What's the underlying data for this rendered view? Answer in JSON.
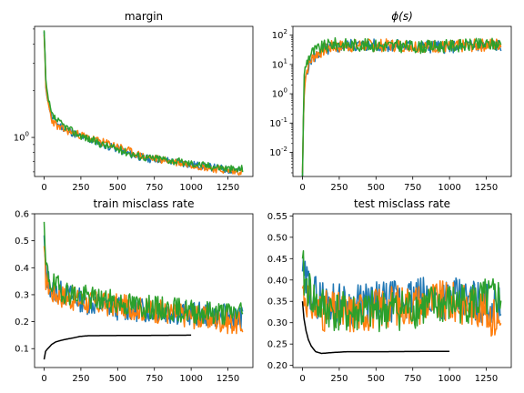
{
  "colors": {
    "C0": "#1f77b4",
    "C1": "#ff7f0e",
    "C2": "#2ca02c",
    "ref": "#000000"
  },
  "chart_data": [
    {
      "id": "margin",
      "type": "line",
      "title": "margin",
      "yscale": "log",
      "xlim": [
        -65,
        1420
      ],
      "ylim": [
        0.56,
        5.2
      ],
      "xticks": [
        0,
        250,
        500,
        750,
        1000,
        1250
      ],
      "xtick_labels": [
        "0",
        "250",
        "500",
        "750",
        "1000",
        "1250"
      ],
      "yticks": [
        1
      ],
      "ytick_labels": [
        "10^0"
      ],
      "series": [
        {
          "color_key": "C0",
          "noise": 0.025,
          "seed": 11,
          "points": [
            [
              0,
              4.8
            ],
            [
              10,
              2.2
            ],
            [
              25,
              1.75
            ],
            [
              50,
              1.35
            ],
            [
              100,
              1.2
            ],
            [
              200,
              1.06
            ],
            [
              300,
              0.97
            ],
            [
              400,
              0.9
            ],
            [
              500,
              0.84
            ],
            [
              600,
              0.77
            ],
            [
              700,
              0.73
            ],
            [
              800,
              0.72
            ],
            [
              900,
              0.69
            ],
            [
              1000,
              0.67
            ],
            [
              1100,
              0.65
            ],
            [
              1200,
              0.63
            ],
            [
              1300,
              0.61
            ],
            [
              1350,
              0.62
            ]
          ]
        },
        {
          "color_key": "C1",
          "noise": 0.025,
          "seed": 23,
          "points": [
            [
              0,
              4.6
            ],
            [
              10,
              2.1
            ],
            [
              25,
              1.7
            ],
            [
              50,
              1.3
            ],
            [
              100,
              1.15
            ],
            [
              200,
              1.07
            ],
            [
              300,
              1.0
            ],
            [
              400,
              0.93
            ],
            [
              500,
              0.88
            ],
            [
              600,
              0.8
            ],
            [
              700,
              0.74
            ],
            [
              800,
              0.72
            ],
            [
              900,
              0.69
            ],
            [
              1000,
              0.67
            ],
            [
              1100,
              0.64
            ],
            [
              1200,
              0.62
            ],
            [
              1300,
              0.6
            ],
            [
              1350,
              0.61
            ]
          ]
        },
        {
          "color_key": "C2",
          "noise": 0.025,
          "seed": 37,
          "points": [
            [
              0,
              4.9
            ],
            [
              10,
              2.3
            ],
            [
              25,
              1.8
            ],
            [
              50,
              1.4
            ],
            [
              100,
              1.25
            ],
            [
              200,
              1.08
            ],
            [
              300,
              0.98
            ],
            [
              400,
              0.9
            ],
            [
              500,
              0.84
            ],
            [
              600,
              0.78
            ],
            [
              700,
              0.74
            ],
            [
              800,
              0.73
            ],
            [
              900,
              0.7
            ],
            [
              1000,
              0.68
            ],
            [
              1100,
              0.66
            ],
            [
              1200,
              0.64
            ],
            [
              1300,
              0.62
            ],
            [
              1350,
              0.63
            ]
          ]
        }
      ]
    },
    {
      "id": "phi",
      "type": "line",
      "title": "ϕ(s)",
      "yscale": "log",
      "xlim": [
        -65,
        1420
      ],
      "ylim": [
        0.0015,
        200
      ],
      "xticks": [
        0,
        250,
        500,
        750,
        1000,
        1250
      ],
      "xtick_labels": [
        "0",
        "250",
        "500",
        "750",
        "1000",
        "1250"
      ],
      "yticks": [
        0.01,
        0.1,
        1,
        10,
        100
      ],
      "ytick_labels": [
        "10^-2",
        "10^-1",
        "10^0",
        "10^1",
        "10^2"
      ],
      "series": [
        {
          "color_key": "C0",
          "noise": 0.22,
          "seed": 5,
          "points": [
            [
              0,
              0.0015
            ],
            [
              8,
              0.1
            ],
            [
              20,
              3
            ],
            [
              60,
              15
            ],
            [
              150,
              30
            ],
            [
              300,
              45
            ],
            [
              600,
              45
            ],
            [
              800,
              40
            ],
            [
              1000,
              40
            ],
            [
              1200,
              45
            ],
            [
              1350,
              45
            ]
          ]
        },
        {
          "color_key": "C1",
          "noise": 0.22,
          "seed": 7,
          "points": [
            [
              0,
              0.002
            ],
            [
              8,
              0.15
            ],
            [
              25,
              5
            ],
            [
              80,
              20
            ],
            [
              200,
              40
            ],
            [
              400,
              45
            ],
            [
              700,
              45
            ],
            [
              1000,
              40
            ],
            [
              1200,
              45
            ],
            [
              1350,
              50
            ]
          ]
        },
        {
          "color_key": "C2",
          "noise": 0.22,
          "seed": 9,
          "points": [
            [
              0,
              0.0015
            ],
            [
              6,
              0.2
            ],
            [
              20,
              8
            ],
            [
              60,
              25
            ],
            [
              200,
              50
            ],
            [
              500,
              45
            ],
            [
              800,
              40
            ],
            [
              1100,
              45
            ],
            [
              1350,
              50
            ]
          ]
        }
      ]
    },
    {
      "id": "train",
      "type": "line",
      "title": "train misclass rate",
      "yscale": "linear",
      "xlim": [
        -65,
        1420
      ],
      "ylim": [
        0.03,
        0.6
      ],
      "xticks": [
        0,
        250,
        500,
        750,
        1000,
        1250
      ],
      "xtick_labels": [
        "0",
        "250",
        "500",
        "750",
        "1000",
        "1250"
      ],
      "yticks": [
        0.1,
        0.2,
        0.3,
        0.4,
        0.5,
        0.6
      ],
      "ytick_labels": [
        "0.1",
        "0.2",
        "0.3",
        "0.4",
        "0.5",
        "0.6"
      ],
      "series": [
        {
          "color_key": "C0",
          "noise": 0.045,
          "seed": 13,
          "points": [
            [
              0,
              0.52
            ],
            [
              10,
              0.38
            ],
            [
              50,
              0.32
            ],
            [
              150,
              0.3
            ],
            [
              300,
              0.27
            ],
            [
              500,
              0.25
            ],
            [
              750,
              0.24
            ],
            [
              1000,
              0.23
            ],
            [
              1250,
              0.22
            ],
            [
              1350,
              0.21
            ]
          ]
        },
        {
          "color_key": "C1",
          "noise": 0.045,
          "seed": 17,
          "points": [
            [
              0,
              0.48
            ],
            [
              10,
              0.36
            ],
            [
              50,
              0.31
            ],
            [
              150,
              0.29
            ],
            [
              300,
              0.27
            ],
            [
              500,
              0.26
            ],
            [
              750,
              0.24
            ],
            [
              1000,
              0.22
            ],
            [
              1250,
              0.2
            ],
            [
              1350,
              0.19
            ]
          ]
        },
        {
          "color_key": "C2",
          "noise": 0.045,
          "seed": 19,
          "points": [
            [
              0,
              0.57
            ],
            [
              10,
              0.4
            ],
            [
              50,
              0.34
            ],
            [
              150,
              0.31
            ],
            [
              300,
              0.29
            ],
            [
              500,
              0.27
            ],
            [
              750,
              0.25
            ],
            [
              1000,
              0.24
            ],
            [
              1250,
              0.23
            ],
            [
              1350,
              0.24
            ]
          ]
        },
        {
          "color_key": "ref",
          "noise": 0,
          "seed": 0,
          "points": [
            [
              0,
              0.06
            ],
            [
              10,
              0.09
            ],
            [
              25,
              0.1
            ],
            [
              50,
              0.115
            ],
            [
              80,
              0.125
            ],
            [
              110,
              0.13
            ],
            [
              150,
              0.135
            ],
            [
              200,
              0.14
            ],
            [
              240,
              0.145
            ],
            [
              300,
              0.148
            ],
            [
              1000,
              0.15
            ]
          ]
        }
      ]
    },
    {
      "id": "test",
      "type": "line",
      "title": "test misclass rate",
      "yscale": "linear",
      "xlim": [
        -65,
        1420
      ],
      "ylim": [
        0.195,
        0.555
      ],
      "xticks": [
        0,
        250,
        500,
        750,
        1000,
        1250
      ],
      "xtick_labels": [
        "0",
        "250",
        "500",
        "750",
        "1000",
        "1250"
      ],
      "yticks": [
        0.2,
        0.25,
        0.3,
        0.35,
        0.4,
        0.45,
        0.5,
        0.55
      ],
      "ytick_labels": [
        "0.20",
        "0.25",
        "0.30",
        "0.35",
        "0.40",
        "0.45",
        "0.50",
        "0.55"
      ],
      "series": [
        {
          "color_key": "C0",
          "noise": 0.05,
          "seed": 29,
          "points": [
            [
              0,
              0.42
            ],
            [
              10,
              0.4
            ],
            [
              100,
              0.36
            ],
            [
              300,
              0.34
            ],
            [
              600,
              0.35
            ],
            [
              900,
              0.36
            ],
            [
              1200,
              0.35
            ],
            [
              1350,
              0.34
            ]
          ]
        },
        {
          "color_key": "C1",
          "noise": 0.05,
          "seed": 31,
          "points": [
            [
              0,
              0.38
            ],
            [
              10,
              0.37
            ],
            [
              100,
              0.33
            ],
            [
              300,
              0.32
            ],
            [
              600,
              0.34
            ],
            [
              900,
              0.35
            ],
            [
              1200,
              0.34
            ],
            [
              1350,
              0.3
            ]
          ]
        },
        {
          "color_key": "C2",
          "noise": 0.05,
          "seed": 41,
          "points": [
            [
              0,
              0.45
            ],
            [
              10,
              0.4
            ],
            [
              100,
              0.34
            ],
            [
              300,
              0.32
            ],
            [
              600,
              0.33
            ],
            [
              900,
              0.34
            ],
            [
              1200,
              0.35
            ],
            [
              1350,
              0.36
            ]
          ]
        },
        {
          "color_key": "ref",
          "noise": 0,
          "seed": 0,
          "points": [
            [
              0,
              0.35
            ],
            [
              10,
              0.31
            ],
            [
              25,
              0.28
            ],
            [
              40,
              0.26
            ],
            [
              60,
              0.245
            ],
            [
              90,
              0.232
            ],
            [
              130,
              0.228
            ],
            [
              200,
              0.23
            ],
            [
              300,
              0.232
            ],
            [
              500,
              0.232
            ],
            [
              1000,
              0.233
            ]
          ]
        }
      ]
    }
  ]
}
